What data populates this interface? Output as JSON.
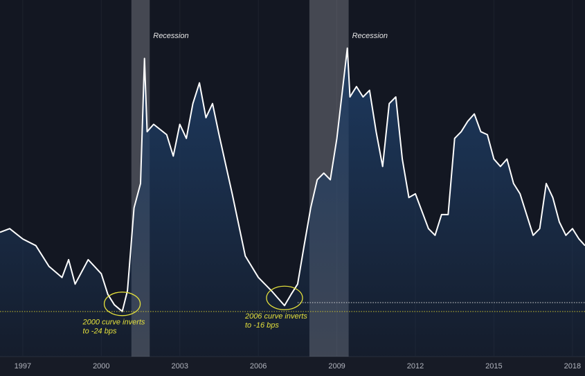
{
  "chart_data": {
    "type": "line",
    "color": "#ffffff",
    "area_color": "#1e3c63",
    "xlim": [
      1996.13,
      2018.48
    ],
    "ylim": [
      -85,
      397
    ],
    "xticks": [
      1997,
      2000,
      2003,
      2006,
      2009,
      2012,
      2015,
      2018
    ],
    "grid": true,
    "x": [
      1996.13,
      1996.5,
      1997,
      1997.5,
      1998,
      1998.5,
      1998.75,
      1999,
      1999.5,
      2000,
      2000.25,
      2000.5,
      2000.8,
      2001,
      2001.25,
      2001.5,
      2001.65,
      2001.75,
      2002,
      2002.5,
      2002.75,
      2003,
      2003.25,
      2003.5,
      2003.75,
      2004,
      2004.25,
      2004.5,
      2005,
      2005.5,
      2006,
      2006.5,
      2006.75,
      2007,
      2007.25,
      2007.5,
      2007.75,
      2008,
      2008.25,
      2008.5,
      2008.75,
      2009,
      2009.4,
      2009.5,
      2009.75,
      2010,
      2010.25,
      2010.5,
      2010.75,
      2011,
      2011.25,
      2011.5,
      2011.75,
      2012,
      2012.5,
      2012.75,
      2013,
      2013.25,
      2013.5,
      2013.75,
      2014,
      2014.25,
      2014.5,
      2014.75,
      2015,
      2015.25,
      2015.5,
      2015.75,
      2016,
      2016.5,
      2016.75,
      2017,
      2017.25,
      2017.5,
      2017.75,
      2018,
      2018.25,
      2018.48
    ],
    "values": [
      83,
      88,
      74,
      65,
      37,
      22,
      46,
      13,
      46,
      27,
      -1,
      -15,
      -24,
      4,
      116,
      149,
      318,
      219,
      229,
      215,
      186,
      229,
      210,
      257,
      285,
      238,
      257,
      215,
      135,
      51,
      22,
      4,
      -6,
      -16,
      -1,
      13,
      65,
      116,
      154,
      163,
      154,
      210,
      332,
      266,
      280,
      266,
      275,
      219,
      172,
      257,
      266,
      182,
      130,
      135,
      88,
      79,
      107,
      107,
      210,
      219,
      233,
      243,
      219,
      215,
      182,
      172,
      182,
      149,
      135,
      79,
      88,
      149,
      130,
      97,
      79,
      88,
      74,
      65
    ],
    "recessions": [
      {
        "start": 2001.15,
        "end": 2001.85,
        "label": "Recession"
      },
      {
        "start": 2007.95,
        "end": 2009.45,
        "label": "Recession"
      }
    ],
    "reference_lines": [
      {
        "value": -24,
        "start": 1996.13,
        "color": "#c8c030"
      },
      {
        "value": -12,
        "start": 2007.5,
        "color": "#d8d8d8"
      }
    ],
    "annotations": [
      {
        "x": 2000.8,
        "y": -24,
        "lines": [
          "2000 curve inverts",
          "to -24 bps"
        ]
      },
      {
        "x": 2007.0,
        "y": -16,
        "lines": [
          "2006 curve inverts",
          "to -16 bps"
        ]
      }
    ]
  }
}
